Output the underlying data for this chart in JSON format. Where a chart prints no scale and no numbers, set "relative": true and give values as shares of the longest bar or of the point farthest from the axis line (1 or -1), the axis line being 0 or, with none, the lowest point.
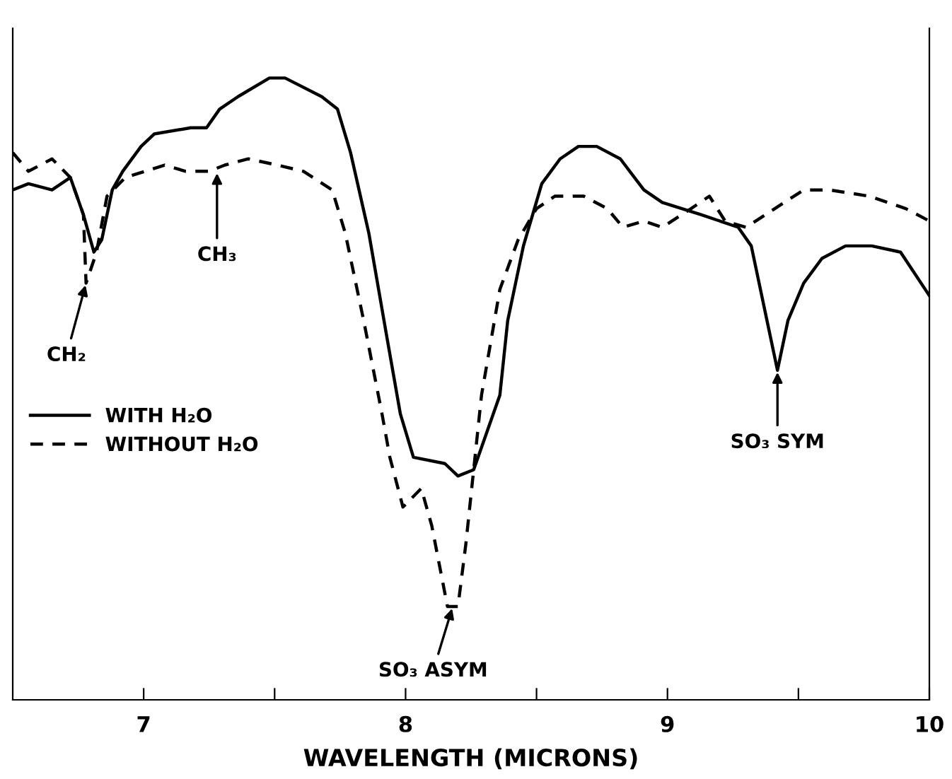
{
  "chart_data": {
    "type": "line",
    "relative": true,
    "xlabel": "WAVELENGTH (MICRONS)",
    "xlim": [
      6.5,
      10
    ],
    "xticks": [
      7,
      {
        "value": 7.5,
        "label": null
      },
      8,
      {
        "value": 8.5,
        "label": null
      },
      9,
      {
        "value": 9.5,
        "label": null
      },
      10
    ],
    "legend": "left",
    "grid": false,
    "marker": "none",
    "series": [
      {
        "name": "WITH H₂O",
        "color": "#000000",
        "line_style": "solid",
        "x": [
          6.5,
          6.56,
          6.65,
          6.72,
          6.77,
          6.81,
          6.84,
          6.88,
          6.92,
          6.99,
          7.04,
          7.18,
          7.24,
          7.29,
          7.36,
          7.48,
          7.54,
          7.68,
          7.74,
          7.79,
          7.86,
          7.93,
          7.98,
          8.03,
          8.15,
          8.2,
          8.26,
          8.36,
          8.39,
          8.45,
          8.52,
          8.59,
          8.66,
          8.73,
          8.82,
          8.91,
          8.98,
          9.13,
          9.27,
          9.32,
          9.38,
          9.42,
          9.46,
          9.52,
          9.59,
          9.68,
          9.78,
          9.89,
          10.0
        ],
        "values": [
          0.82,
          0.83,
          0.82,
          0.84,
          0.78,
          0.72,
          0.74,
          0.82,
          0.85,
          0.89,
          0.91,
          0.92,
          0.92,
          0.95,
          0.97,
          1.0,
          1.0,
          0.97,
          0.95,
          0.88,
          0.75,
          0.58,
          0.46,
          0.39,
          0.38,
          0.36,
          0.37,
          0.49,
          0.61,
          0.73,
          0.83,
          0.87,
          0.89,
          0.89,
          0.87,
          0.82,
          0.8,
          0.78,
          0.76,
          0.73,
          0.61,
          0.53,
          0.61,
          0.67,
          0.71,
          0.73,
          0.73,
          0.72,
          0.65
        ]
      },
      {
        "name": "WITHOUT H₂O",
        "color": "#000000",
        "line_style": "dashed",
        "x": [
          6.5,
          6.56,
          6.65,
          6.72,
          6.77,
          6.78,
          6.82,
          6.86,
          6.93,
          7.08,
          7.16,
          7.25,
          7.31,
          7.4,
          7.51,
          7.61,
          7.72,
          7.77,
          7.84,
          7.91,
          7.94,
          7.99,
          8.06,
          8.1,
          8.16,
          8.2,
          8.23,
          8.26,
          8.29,
          8.36,
          8.43,
          8.5,
          8.57,
          8.68,
          8.77,
          8.83,
          8.91,
          8.98,
          9.09,
          9.16,
          9.22,
          9.3,
          9.41,
          9.52,
          9.62,
          9.77,
          9.91,
          10.0
        ],
        "values": [
          0.88,
          0.85,
          0.87,
          0.84,
          0.78,
          0.67,
          0.72,
          0.81,
          0.84,
          0.86,
          0.85,
          0.85,
          0.86,
          0.87,
          0.86,
          0.85,
          0.82,
          0.75,
          0.61,
          0.46,
          0.39,
          0.31,
          0.34,
          0.28,
          0.15,
          0.15,
          0.25,
          0.37,
          0.49,
          0.66,
          0.74,
          0.79,
          0.81,
          0.81,
          0.79,
          0.76,
          0.77,
          0.76,
          0.79,
          0.81,
          0.77,
          0.76,
          0.79,
          0.82,
          0.82,
          0.81,
          0.79,
          0.77
        ]
      }
    ],
    "annotations": [
      {
        "text": "CH₂",
        "x": 6.78,
        "y": 0.67
      },
      {
        "text": "CH₃",
        "x": 7.28,
        "y": 0.85
      },
      {
        "text": "SO₃ ASYM",
        "x": 8.18,
        "y": 0.15
      },
      {
        "text": "SO₃ SYM",
        "x": 9.42,
        "y": 0.53
      }
    ]
  }
}
